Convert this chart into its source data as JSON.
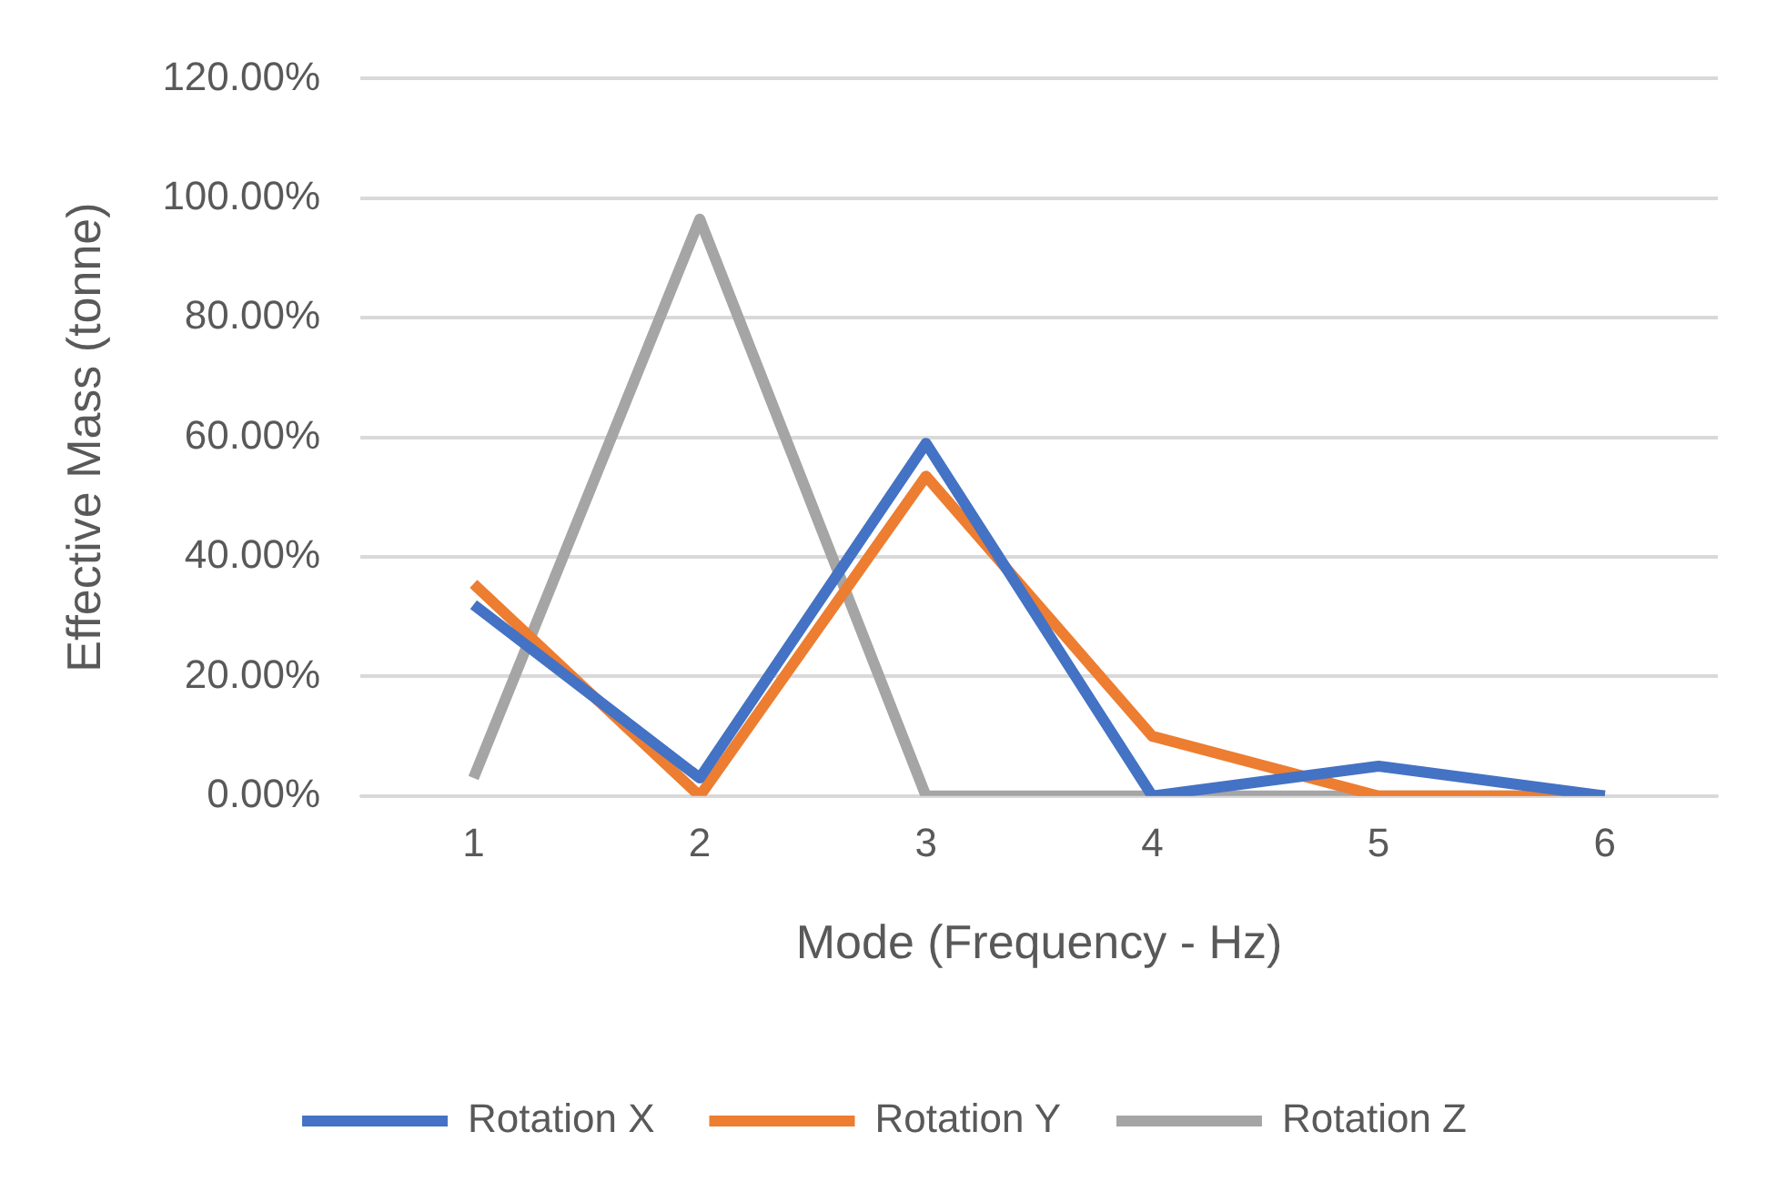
{
  "chart_data": {
    "type": "line",
    "xlabel": "Mode (Frequency - Hz)",
    "ylabel": "Effective Mass (tonne)",
    "categories": [
      "1",
      "2",
      "3",
      "4",
      "5",
      "6"
    ],
    "series": [
      {
        "name": "Rotation X",
        "color": "#4472c4",
        "values": [
          32,
          3,
          59,
          0,
          5,
          0
        ]
      },
      {
        "name": "Rotation Y",
        "color": "#ed7d31",
        "values": [
          35.5,
          0,
          53.5,
          10,
          0,
          0
        ]
      },
      {
        "name": "Rotation Z",
        "color": "#a5a5a5",
        "values": [
          3,
          96.5,
          0,
          0,
          0,
          0
        ]
      }
    ],
    "ylim": [
      0,
      120
    ],
    "yticks": [
      {
        "value": 0,
        "label": "0.00%"
      },
      {
        "value": 20,
        "label": "20.00%"
      },
      {
        "value": 40,
        "label": "40.00%"
      },
      {
        "value": 60,
        "label": "60.00%"
      },
      {
        "value": 80,
        "label": "80.00%"
      },
      {
        "value": 100,
        "label": "100.00%"
      },
      {
        "value": 120,
        "label": "120.00%"
      }
    ],
    "grid": "y",
    "legend": "bottom",
    "marker": "none",
    "line_style": "solid"
  }
}
